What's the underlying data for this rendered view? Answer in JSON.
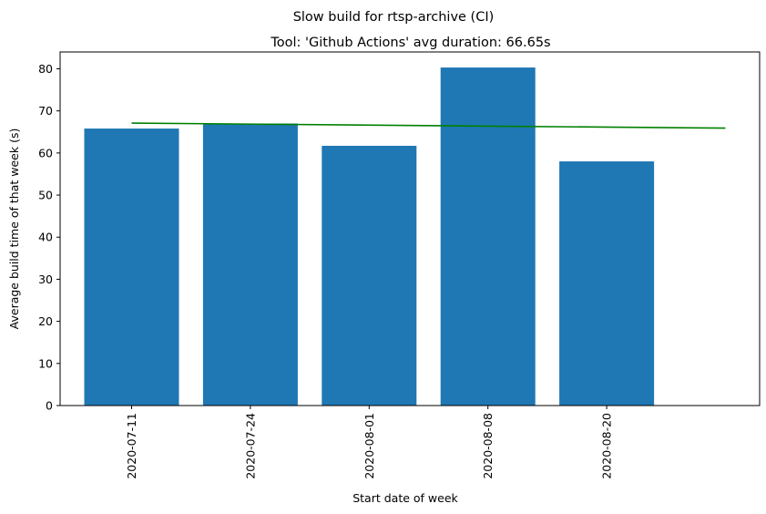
{
  "chart_data": {
    "type": "bar",
    "suptitle": "Slow build for rtsp-archive (CI)",
    "title": "Tool: 'Github Actions' avg duration: 66.65s",
    "xlabel": "Start date of week",
    "ylabel": "Average build time of that week (s)",
    "categories": [
      "2020-07-11",
      "2020-07-24",
      "2020-08-01",
      "2020-08-08",
      "2020-08-20"
    ],
    "values": [
      65.8,
      67.0,
      61.7,
      80.3,
      58.0
    ],
    "bar_color": "#1f77b4",
    "trend": {
      "color": "#008000",
      "start": 67.1,
      "end": 65.9
    },
    "ylim": [
      0,
      84
    ],
    "yticks": [
      0,
      10,
      20,
      30,
      40,
      50,
      60,
      70,
      80
    ],
    "grid": false
  }
}
